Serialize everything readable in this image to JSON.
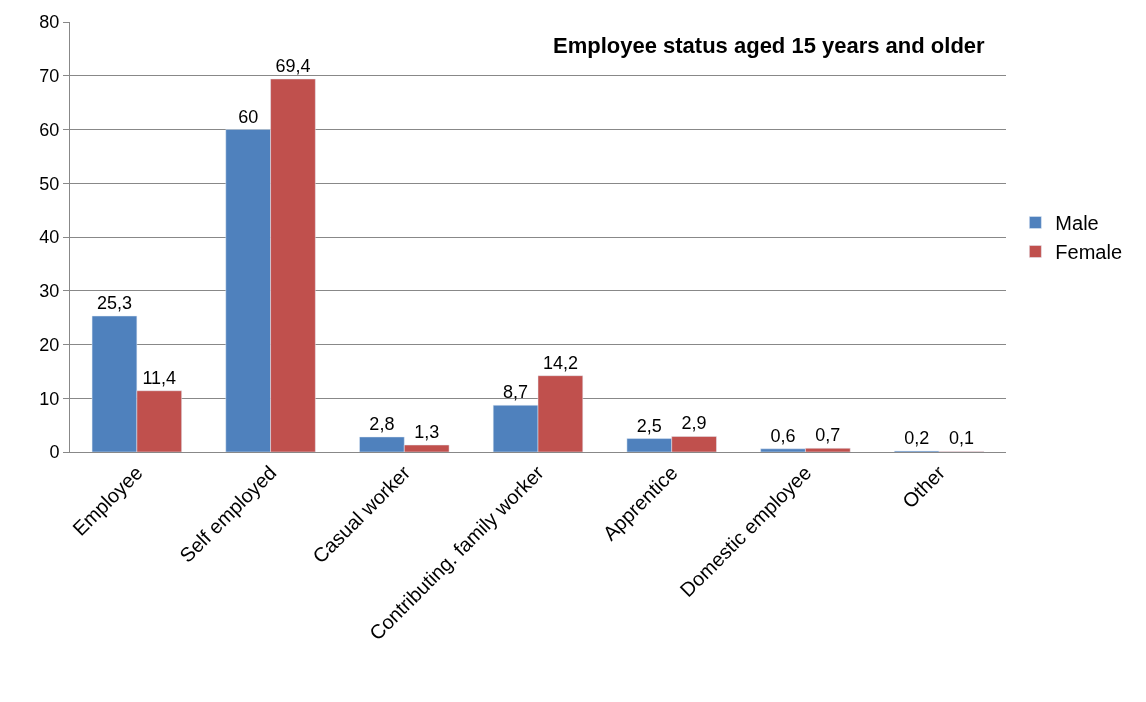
{
  "chart_data": {
    "type": "bar",
    "title": "Employee status aged 15 years and older",
    "categories": [
      "Employee",
      "Self employed",
      "Casual worker",
      "Contributing. family worker",
      "Apprentice",
      "Domestic employee",
      "Other"
    ],
    "series": [
      {
        "name": "Male",
        "color": "#4f81bd",
        "values": [
          25.3,
          60,
          2.8,
          8.7,
          2.5,
          0.6,
          0.2
        ],
        "value_labels": [
          "25,3",
          "60",
          "2,8",
          "8,7",
          "2,5",
          "0,6",
          "0,2"
        ]
      },
      {
        "name": "Female",
        "color": "#c0504d",
        "values": [
          11.4,
          69.4,
          1.3,
          14.2,
          2.9,
          0.7,
          0.1
        ],
        "value_labels": [
          "11,4",
          "69,4",
          "1,3",
          "14,2",
          "2,9",
          "0,7",
          "0,1"
        ]
      }
    ],
    "ylim": [
      0,
      80
    ],
    "yticks": [
      0,
      10,
      20,
      30,
      40,
      50,
      60,
      70,
      80
    ],
    "grid": "y",
    "legend": "right"
  }
}
